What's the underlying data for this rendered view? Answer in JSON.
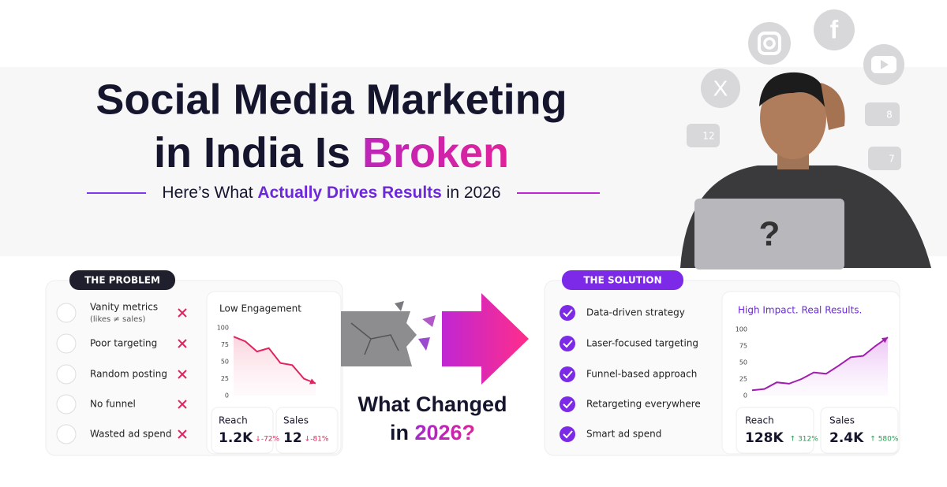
{
  "header": {
    "title_line1": "Social Media Marketing",
    "title_line2_a": "in India Is ",
    "title_line2_b": "Broken",
    "subtitle_a": "Here’s What ",
    "subtitle_b": "Actually Drives Results",
    "subtitle_c": " in 2026"
  },
  "social": {
    "likes": 12,
    "followers": 8,
    "thumbs": 7
  },
  "problem": {
    "badge": "THE PROBLEM",
    "items": [
      {
        "label": "Vanity metrics",
        "note": "(likes ≠ sales)"
      },
      {
        "label": "Poor targeting"
      },
      {
        "label": "Random posting"
      },
      {
        "label": "No funnel"
      },
      {
        "label": "Wasted ad spend"
      }
    ],
    "chart": {
      "title": "Low Engagement",
      "ylim": [
        0,
        100
      ],
      "yticks": [
        0,
        25,
        50,
        75,
        100
      ],
      "values": [
        87,
        80,
        65,
        70,
        48,
        45,
        25,
        18
      ]
    },
    "stats": [
      {
        "label": "Reach",
        "value": "1.2K",
        "change": "↓-72%"
      },
      {
        "label": "Sales",
        "value": "12",
        "change": "↓-81%"
      }
    ]
  },
  "center": {
    "question_a": "What Changed",
    "question_b": "in ",
    "question_c": "2026?"
  },
  "solution": {
    "badge": "THE SOLUTION",
    "items": [
      {
        "label": "Data-driven strategy"
      },
      {
        "label": "Laser-focused targeting"
      },
      {
        "label": "Funnel-based approach"
      },
      {
        "label": "Retargeting everywhere"
      },
      {
        "label": "Smart ad spend"
      }
    ],
    "chart": {
      "title": "High Impact. Real Results.",
      "ylim": [
        0,
        100
      ],
      "yticks": [
        0,
        25,
        50,
        75,
        100
      ],
      "values": [
        8,
        10,
        20,
        18,
        25,
        35,
        33,
        45,
        58,
        60,
        75,
        88
      ]
    },
    "stats": [
      {
        "label": "Reach",
        "value": "128K",
        "change": "↑ 312%"
      },
      {
        "label": "Sales",
        "value": "2.4K",
        "change": "↑ 580%"
      }
    ]
  }
}
